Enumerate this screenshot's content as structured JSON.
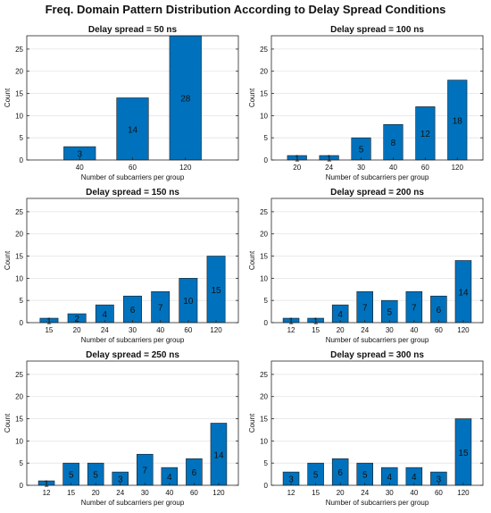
{
  "figure": {
    "title": "Freq. Domain Pattern Distribution According to  Delay Spread Conditions"
  },
  "colors": {
    "bar": "#0072BD",
    "bar_edge": "#1a1a1a",
    "axis": "#262626",
    "grid": "#e3e3e3",
    "text": "#111111"
  },
  "chart_data": [
    {
      "type": "bar",
      "title": "Delay spread = 50 ns",
      "xlabel": "Number of subcarriers per group",
      "ylabel": "Count",
      "categories": [
        "40",
        "60",
        "120"
      ],
      "values": [
        3,
        14,
        28
      ],
      "ylim": [
        0,
        28
      ],
      "yticks": [
        0,
        5,
        10,
        15,
        20,
        25
      ],
      "xlim": [
        0,
        4
      ],
      "bar_width": 0.6,
      "grid": true,
      "data_labels": true
    },
    {
      "type": "bar",
      "title": "Delay spread = 100 ns",
      "xlabel": "Number of subcarriers per group",
      "ylabel": "Count",
      "categories": [
        "20",
        "24",
        "30",
        "40",
        "60",
        "120"
      ],
      "values": [
        1,
        1,
        5,
        8,
        12,
        18
      ],
      "ylim": [
        0,
        28
      ],
      "yticks": [
        0,
        5,
        10,
        15,
        20,
        25
      ],
      "xlim": [
        0.2,
        6.8
      ],
      "bar_width": 0.6,
      "grid": true,
      "data_labels": true
    },
    {
      "type": "bar",
      "title": "Delay spread = 150 ns",
      "xlabel": "Number of subcarriers per group",
      "ylabel": "Count",
      "categories": [
        "15",
        "20",
        "24",
        "30",
        "40",
        "60",
        "120"
      ],
      "values": [
        1,
        2,
        4,
        6,
        7,
        10,
        15
      ],
      "ylim": [
        0,
        28
      ],
      "yticks": [
        0,
        5,
        10,
        15,
        20,
        25
      ],
      "xlim": [
        0.2,
        7.8
      ],
      "bar_width": 0.65,
      "grid": true,
      "data_labels": true
    },
    {
      "type": "bar",
      "title": "Delay spread = 200 ns",
      "xlabel": "Number of subcarriers per group",
      "ylabel": "Count",
      "categories": [
        "12",
        "15",
        "20",
        "24",
        "30",
        "40",
        "60",
        "120"
      ],
      "values": [
        1,
        1,
        4,
        7,
        5,
        7,
        6,
        14
      ],
      "ylim": [
        0,
        28
      ],
      "yticks": [
        0,
        5,
        10,
        15,
        20,
        25
      ],
      "xlim": [
        0.2,
        8.8
      ],
      "bar_width": 0.65,
      "grid": true,
      "data_labels": true
    },
    {
      "type": "bar",
      "title": "Delay spread = 250 ns",
      "xlabel": "Number of subcarriers per group",
      "ylabel": "Count",
      "categories": [
        "12",
        "15",
        "20",
        "24",
        "30",
        "40",
        "60",
        "120"
      ],
      "values": [
        1,
        5,
        5,
        3,
        7,
        4,
        6,
        14
      ],
      "ylim": [
        0,
        28
      ],
      "yticks": [
        0,
        5,
        10,
        15,
        20,
        25
      ],
      "xlim": [
        0.2,
        8.8
      ],
      "bar_width": 0.65,
      "grid": true,
      "data_labels": true
    },
    {
      "type": "bar",
      "title": "Delay spread = 300 ns",
      "xlabel": "Number of subcarriers per group",
      "ylabel": "Count",
      "categories": [
        "12",
        "15",
        "20",
        "24",
        "30",
        "40",
        "60",
        "120"
      ],
      "values": [
        3,
        5,
        6,
        5,
        4,
        4,
        3,
        15
      ],
      "ylim": [
        0,
        28
      ],
      "yticks": [
        0,
        5,
        10,
        15,
        20,
        25
      ],
      "xlim": [
        0.2,
        8.8
      ],
      "bar_width": 0.65,
      "grid": true,
      "data_labels": true
    }
  ]
}
